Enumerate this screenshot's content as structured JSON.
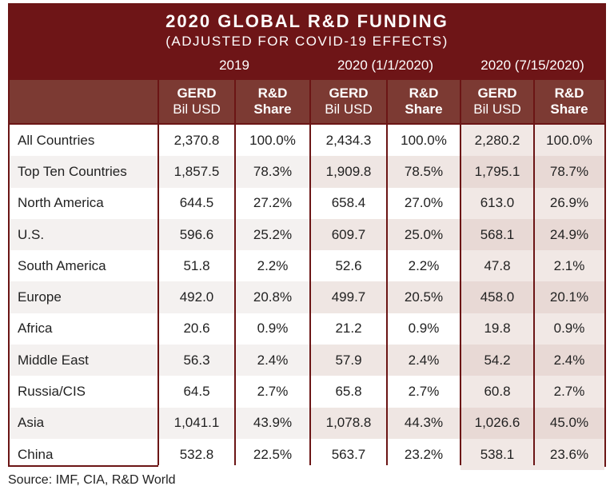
{
  "title": "2020 GLOBAL R&D FUNDING",
  "subtitle": "(ADJUSTED FOR COVID-19 EFFECTS)",
  "groups": [
    "2019",
    "2020 (1/1/2020)",
    "2020 (7/15/2020)"
  ],
  "subheaders": [
    {
      "line1": "GERD",
      "line2": "Bil USD"
    },
    {
      "line1": "R&D",
      "line2": "Share"
    },
    {
      "line1": "GERD",
      "line2": "Bil USD"
    },
    {
      "line1": "R&D",
      "line2": "Share"
    },
    {
      "line1": "GERD",
      "line2": "Bil USD"
    },
    {
      "line1": "R&D",
      "line2": "Share"
    }
  ],
  "rows": [
    {
      "label": "All Countries",
      "values": [
        "2,370.8",
        "100.0%",
        "2,434.3",
        "100.0%",
        "2,280.2",
        "100.0%"
      ]
    },
    {
      "label": "Top Ten Countries",
      "values": [
        "1,857.5",
        "78.3%",
        "1,909.8",
        "78.5%",
        "1,795.1",
        "78.7%"
      ]
    },
    {
      "label": "North America",
      "values": [
        "644.5",
        "27.2%",
        "658.4",
        "27.0%",
        "613.0",
        "26.9%"
      ]
    },
    {
      "label": "U.S.",
      "values": [
        "596.6",
        "25.2%",
        "609.7",
        "25.0%",
        "568.1",
        "24.9%"
      ]
    },
    {
      "label": "South America",
      "values": [
        "51.8",
        "2.2%",
        "52.6",
        "2.2%",
        "47.8",
        "2.1%"
      ]
    },
    {
      "label": "Europe",
      "values": [
        "492.0",
        "20.8%",
        "499.7",
        "20.5%",
        "458.0",
        "20.1%"
      ]
    },
    {
      "label": "Africa",
      "values": [
        "20.6",
        "0.9%",
        "21.2",
        "0.9%",
        "19.8",
        "0.9%"
      ]
    },
    {
      "label": "Middle East",
      "values": [
        "56.3",
        "2.4%",
        "57.9",
        "2.4%",
        "54.2",
        "2.4%"
      ]
    },
    {
      "label": "Russia/CIS",
      "values": [
        "64.5",
        "2.7%",
        "65.8",
        "2.7%",
        "60.8",
        "2.7%"
      ]
    },
    {
      "label": "Asia",
      "values": [
        "1,041.1",
        "43.9%",
        "1,078.8",
        "44.3%",
        "1,026.6",
        "45.0%"
      ]
    },
    {
      "label": "China",
      "values": [
        "532.8",
        "22.5%",
        "563.7",
        "23.2%",
        "538.1",
        "23.6%"
      ]
    }
  ],
  "source": "Source: IMF, CIA, R&D World",
  "colors": {
    "title_band": "#6e1517",
    "subheader_band": "#7c3a33",
    "border": "#6b1515",
    "stripe_light": "#f4f1f0",
    "stripe_col_2020a": "#efe6e3",
    "stripe_col_2020b": "#e8d9d5"
  }
}
